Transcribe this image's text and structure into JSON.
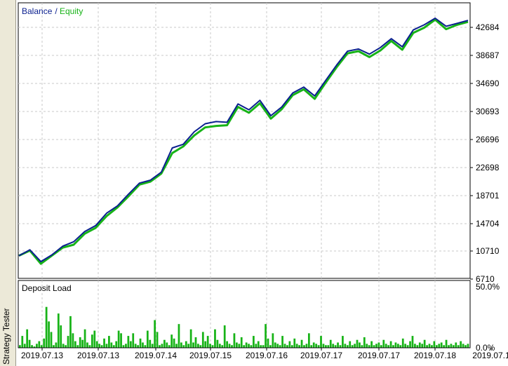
{
  "window": {
    "side_tab_label": "Strategy Tester"
  },
  "colors": {
    "balance": "#0a1f8f",
    "equity": "#17b317",
    "grid": "#c8c8c8",
    "load": "#17b317"
  },
  "legend": {
    "balance": "Balance",
    "separator": " / ",
    "equity": "Equity"
  },
  "chart_data": [
    {
      "type": "line",
      "title": "",
      "series": [
        {
          "name": "Balance",
          "values": [
            9800,
            10600,
            9000,
            9900,
            11100,
            11700,
            13100,
            13900,
            15600,
            16600,
            18200,
            19700,
            20100,
            21200,
            24500,
            25000,
            26700,
            27800,
            28100,
            28000,
            30500,
            29700,
            31000,
            28900,
            30100,
            32000,
            32800,
            31600,
            33700,
            35800,
            37700,
            38000,
            37300,
            38200,
            39400,
            38300,
            40600,
            41300,
            42200,
            41100,
            41500,
            41900
          ]
        },
        {
          "name": "Equity",
          "values": [
            9800,
            10500,
            8700,
            9800,
            10900,
            11300,
            12800,
            13600,
            15200,
            16400,
            17900,
            19500,
            19900,
            21000,
            23800,
            24700,
            26200,
            27300,
            27500,
            27600,
            30100,
            29300,
            30600,
            28500,
            29800,
            31700,
            32500,
            31200,
            33400,
            35500,
            37400,
            37700,
            36900,
            37800,
            39100,
            37900,
            40200,
            40900,
            42000,
            40700,
            41300,
            41700
          ]
        }
      ],
      "x_tick_labels": [
        "2019.07.13",
        "2019.07.13",
        "2019.07.14",
        "2019.07.15",
        "2019.07.16",
        "2019.07.17",
        "2019.07.17",
        "2019.07.18",
        "2019.07.1"
      ],
      "y_tick_labels": [
        "42684",
        "38687",
        "34690",
        "30693",
        "26696",
        "22698",
        "18701",
        "14704",
        "10710",
        "6710"
      ],
      "ylim": [
        6710,
        44300
      ],
      "grid": true,
      "legend_position": "top-left"
    },
    {
      "type": "bar",
      "title": "Deposit Load",
      "y_tick_labels": [
        "50.0%",
        "0.0%"
      ],
      "ylim": [
        0,
        50
      ],
      "values": [
        2,
        9,
        3,
        14,
        6,
        2,
        1,
        3,
        5,
        2,
        7,
        31,
        20,
        12,
        2,
        4,
        26,
        17,
        3,
        2,
        9,
        24,
        11,
        5,
        2,
        8,
        6,
        14,
        4,
        2,
        10,
        13,
        5,
        3,
        2,
        7,
        3,
        9,
        4,
        2,
        5,
        13,
        11,
        2,
        3,
        9,
        5,
        11,
        3,
        2,
        7,
        4,
        2,
        13,
        6,
        3,
        21,
        12,
        2,
        3,
        6,
        4,
        2,
        10,
        7,
        3,
        18,
        4,
        2,
        5,
        3,
        14,
        4,
        8,
        3,
        2,
        12,
        5,
        9,
        3,
        2,
        14,
        6,
        3,
        2,
        17,
        5,
        3,
        2,
        11,
        4,
        3,
        8,
        2,
        4,
        3,
        2,
        9,
        3,
        5,
        2,
        2,
        18,
        7,
        2,
        11,
        4,
        3,
        2,
        9,
        3,
        2,
        5,
        2,
        7,
        3,
        2,
        6,
        2,
        3,
        11,
        2,
        4,
        3,
        2,
        9,
        3,
        2,
        2,
        6,
        3,
        2,
        4,
        2,
        9,
        3,
        2,
        5,
        2,
        3,
        6,
        4,
        2,
        8,
        3,
        2,
        5,
        2,
        3,
        4,
        2,
        6,
        3,
        2,
        5,
        2,
        4,
        3,
        2,
        7,
        3,
        2,
        5,
        9,
        3,
        2,
        4,
        3,
        6,
        2,
        3,
        2,
        5,
        2,
        3,
        4,
        2,
        6,
        2,
        3,
        2,
        4,
        2,
        5,
        3,
        2,
        3
      ]
    }
  ]
}
